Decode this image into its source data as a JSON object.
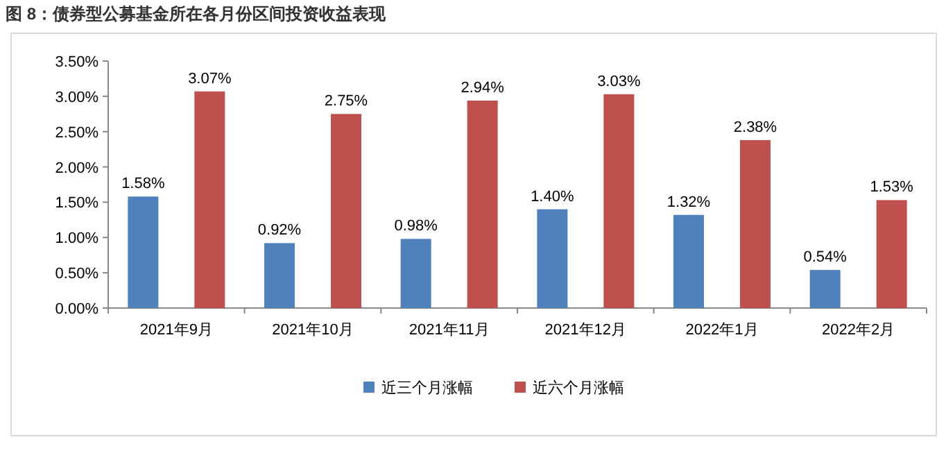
{
  "chart_data": {
    "type": "bar",
    "title": "图 8：债券型公募基金所在各月份区间投资收益表现",
    "categories": [
      "2021年9月",
      "2021年10月",
      "2021年11月",
      "2021年12月",
      "2022年1月",
      "2022年2月"
    ],
    "series": [
      {
        "name": "近三个月涨幅",
        "color": "#4f81bd",
        "values": [
          1.58,
          0.92,
          0.98,
          1.4,
          1.32,
          0.54
        ],
        "value_labels": [
          "1.58%",
          "0.92%",
          "0.98%",
          "1.40%",
          "1.32%",
          "0.54%"
        ]
      },
      {
        "name": "近六个月涨幅",
        "color": "#c0504d",
        "values": [
          3.07,
          2.75,
          2.94,
          3.03,
          2.38,
          1.53
        ],
        "value_labels": [
          "3.07%",
          "2.75%",
          "2.94%",
          "3.03%",
          "2.38%",
          "1.53%"
        ]
      }
    ],
    "ylim": [
      0,
      3.5
    ],
    "yticks": [
      {
        "value": 0,
        "label": "0.00%"
      },
      {
        "value": 0.5,
        "label": "0.50%"
      },
      {
        "value": 1,
        "label": "1.00%"
      },
      {
        "value": 1.5,
        "label": "1.50%"
      },
      {
        "value": 2,
        "label": "2.00%"
      },
      {
        "value": 2.5,
        "label": "2.50%"
      },
      {
        "value": 3,
        "label": "3.00%"
      },
      {
        "value": 3.5,
        "label": "3.50%"
      }
    ],
    "legend": "bottom",
    "grid": false
  }
}
